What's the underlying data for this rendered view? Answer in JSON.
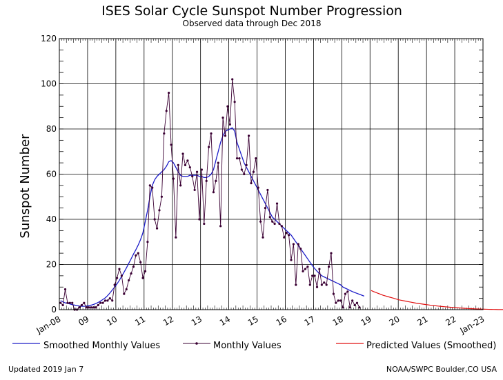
{
  "chart_data": {
    "type": "line",
    "title": "ISES Solar Cycle Sunspot Number Progression",
    "subtitle": "Observed data through Dec 2018",
    "ylabel": "Sunspot Number",
    "xlabel": "",
    "ylim": [
      0,
      120
    ],
    "y_ticks": [
      0,
      20,
      40,
      60,
      80,
      100,
      120
    ],
    "x_tick_labels": [
      "Jan-08",
      "09",
      "10",
      "11",
      "12",
      "13",
      "14",
      "15",
      "16",
      "17",
      "18",
      "19",
      "20",
      "21",
      "22",
      "Jan-23"
    ],
    "grid": true,
    "legend_position": "bottom",
    "legend": [
      "Smoothed Monthly Values",
      "Monthly Values",
      "Predicted Values (Smoothed)"
    ],
    "colors": {
      "smoothed": "#1c1cc8",
      "monthly": "#3a0033",
      "predicted": "#e01010",
      "grid": "#000000"
    },
    "series": [
      {
        "name": "Monthly Values",
        "x_start": "2008-01",
        "values": [
          3,
          2,
          9,
          3,
          3,
          3,
          0,
          0,
          1,
          2,
          3,
          1,
          1,
          1,
          1,
          1,
          2,
          3,
          3,
          4,
          4,
          5,
          4,
          11,
          14,
          18,
          15,
          7,
          9,
          13,
          16,
          19,
          24,
          25,
          21,
          14,
          17,
          30,
          55,
          54,
          40,
          36,
          44,
          50,
          78,
          88,
          96,
          73,
          58,
          32,
          64,
          55,
          69,
          64,
          66,
          63,
          59,
          53,
          61,
          40,
          62,
          38,
          57,
          72,
          78,
          52,
          57,
          65,
          37,
          85,
          77,
          90,
          82,
          102,
          92,
          67,
          67,
          62,
          60,
          64,
          77,
          56,
          61,
          67,
          54,
          39,
          32,
          45,
          53,
          41,
          39,
          38,
          47,
          38,
          37,
          32,
          34,
          33,
          22,
          29,
          11,
          29,
          27,
          17,
          18,
          19,
          11,
          15,
          15,
          10,
          18,
          11,
          12,
          11,
          19,
          25,
          7,
          3,
          4,
          4,
          1,
          7,
          8,
          1,
          4,
          2,
          3,
          1
        ]
      },
      {
        "name": "Smoothed Monthly Values",
        "x_start": "2008-01",
        "values": [
          4,
          3.5,
          3,
          2.8,
          2.5,
          2.2,
          2,
          1.8,
          1.6,
          1.5,
          1.5,
          1.6,
          1.8,
          2,
          2.3,
          2.7,
          3.2,
          3.8,
          4.5,
          5.2,
          6.2,
          7.4,
          8.7,
          10,
          11.4,
          13,
          14.8,
          16.6,
          18.5,
          20.5,
          22.5,
          24.6,
          26.5,
          28.6,
          31,
          34,
          39,
          44,
          50,
          55,
          57.5,
          59,
          60,
          61,
          62,
          63.5,
          65.5,
          66,
          65,
          63,
          61,
          59.5,
          59,
          59,
          59,
          59.5,
          59.5,
          59.5,
          59.5,
          59,
          59,
          58.5,
          58.5,
          59,
          60,
          62,
          66,
          70,
          74,
          77,
          79,
          79.5,
          80,
          80.5,
          79,
          74,
          71,
          68,
          65,
          63,
          61,
          59,
          57,
          55,
          53,
          51,
          49,
          47,
          45,
          43,
          41,
          40,
          39,
          38,
          37,
          36,
          35,
          34,
          33,
          31.5,
          30,
          28.5,
          27,
          25.5,
          24,
          22.5,
          21,
          19.5,
          18.2,
          17,
          16,
          15,
          14.5,
          14,
          13.5,
          13,
          12.5,
          12,
          11.5,
          11,
          10,
          9.5,
          9,
          8.5,
          8,
          7.6,
          7.2,
          6.8,
          6.4,
          6
        ]
      },
      {
        "name": "Predicted Values (Smoothed)",
        "x_start": "2019-01",
        "values": [
          8.5,
          8,
          7.6,
          7.2,
          6.8,
          6.4,
          6.1,
          5.8,
          5.5,
          5.2,
          4.9,
          4.6,
          4.3,
          4.1,
          3.9,
          3.7,
          3.5,
          3.3,
          3.1,
          2.9,
          2.75,
          2.6,
          2.45,
          2.3,
          2.15,
          2,
          1.88,
          1.76,
          1.64,
          1.52,
          1.42,
          1.32,
          1.22,
          1.13,
          1.04,
          0.96,
          0.88,
          0.8,
          0.72,
          0.65,
          0.58,
          0.52,
          0.46,
          0.41,
          0.36,
          0.32,
          0.28,
          0.24,
          0.2,
          0.17,
          0.14,
          0.11,
          0.09,
          0.07,
          0.05,
          0.04,
          0.03,
          0.02,
          0.01,
          0.01,
          0
        ]
      }
    ]
  },
  "footer": {
    "updated": "Updated 2019 Jan  7",
    "source": "NOAA/SWPC Boulder,CO USA"
  }
}
